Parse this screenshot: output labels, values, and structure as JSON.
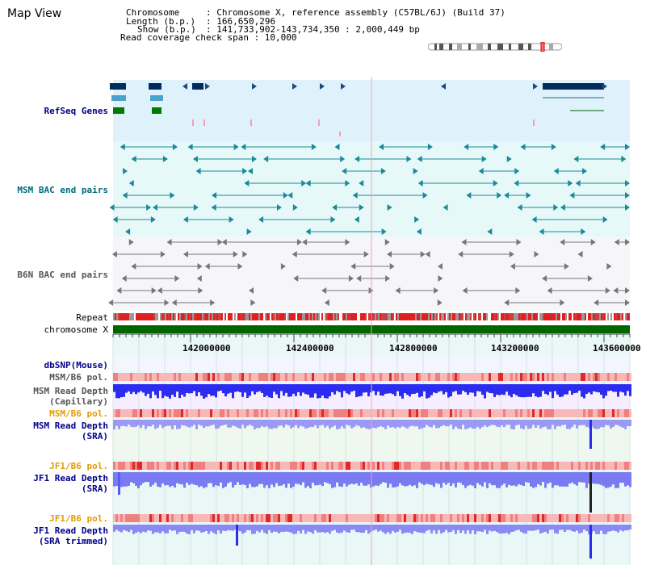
{
  "header": {
    "title": "Map View",
    "chromosome_key": "Chromosome",
    "chromosome_value": ": Chromosome X, reference assembly (C57BL/6J) (Build 37)",
    "length_key": "Length (b.p.)",
    "length_value": ": 166,650,296",
    "show_key": "Show (b.p.)",
    "show_value": ": 141,733,902-143,734,350 : 2,000,449 bp",
    "coverage_text": "Read coverage check span : 10,000"
  },
  "tracks": {
    "refseq": "RefSeq Genes",
    "msm_bac": "MSM BAC end pairs",
    "b6n_bac": "B6N BAC end pairs",
    "repeat": "Repeat",
    "chromosome": "chromosome X",
    "dbsnp": "dbSNP(Mouse)",
    "msm_pol": "MSM/B6 pol.",
    "msm_depth_cap_1": "MSM Read Depth",
    "msm_depth_cap_2": "(Capillary)",
    "msm_pol2": "MSM/B6 pol.",
    "msm_depth_sra_1": "MSM Read Depth",
    "msm_depth_sra_2": "(SRA)",
    "jf1_pol": "JF1/B6 pol.",
    "jf1_depth_sra_1": "JF1 Read Depth",
    "jf1_depth_sra_2": "(SRA)",
    "jf1_pol2": "JF1/B6 pol.",
    "jf1_depth_trim_1": "JF1 Read Depth",
    "jf1_depth_trim_2": "(SRA trimmed)"
  },
  "ruler": {
    "ticks": [
      "142000000",
      "142400000",
      "142800000",
      "143200000",
      "143600000"
    ]
  },
  "colors": {
    "refseq_bg": "#dff2fb",
    "msm_bac_bg": "#e6f8f8",
    "b6n_bac_bg": "#f6f6f9",
    "lower_bg": "#e9f7f6",
    "chromosome_bar": "#006600",
    "depth_blue": "#2c2cf0",
    "depth_light": "#9a9af6",
    "label_navy": "#00008b",
    "label_teal": "#006b7d",
    "label_orange": "#e69a00",
    "label_gray": "#555555"
  },
  "icons": {
    "gene_arrow": "triangle-icon",
    "cursor_line": "position-marker"
  }
}
